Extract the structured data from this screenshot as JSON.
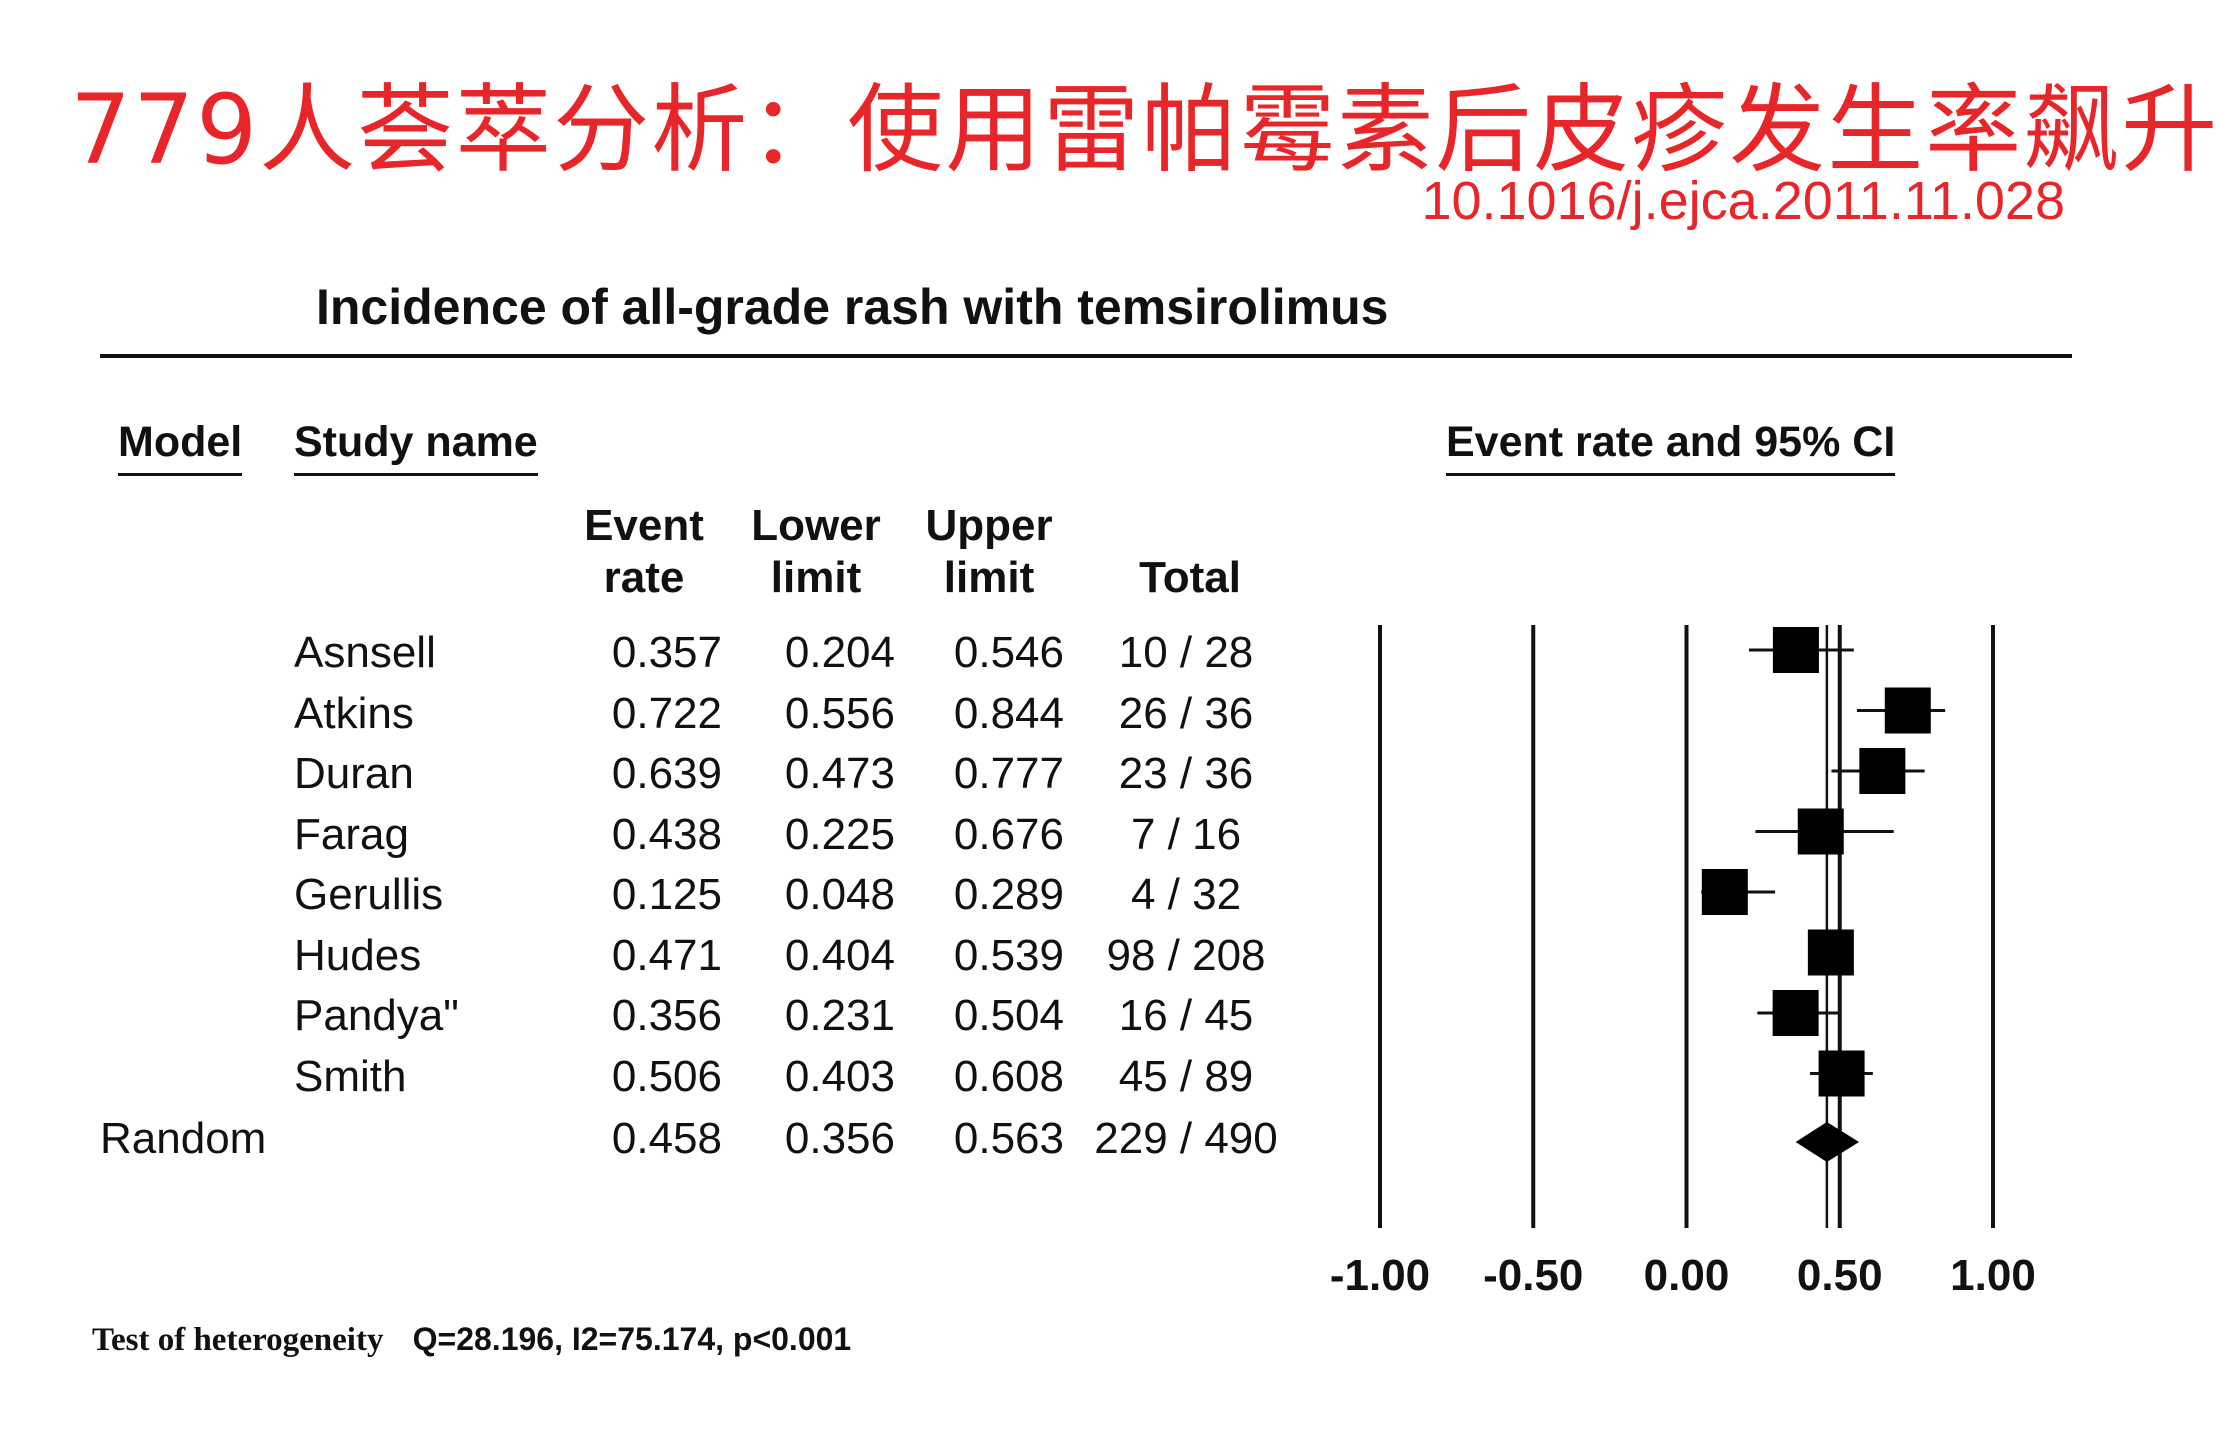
{
  "headline": "779人荟萃分析：使用雷帕霉素后皮疹发生率飙升",
  "doi": "10.1016/j.ejca.2011.11.028",
  "chart_data": {
    "type": "forest",
    "title": "Incidence of all-grade rash with temsirolimus",
    "columns": {
      "model": "Model",
      "study": "Study name",
      "event_rate_ci": "Event rate and 95% CI",
      "event_rate": [
        "Event",
        "rate"
      ],
      "lower": [
        "Lower",
        "limit"
      ],
      "upper": [
        "Upper",
        "limit"
      ],
      "total": "Total"
    },
    "studies": [
      {
        "name": "Asnsell",
        "event_rate": "0.357",
        "lower": "0.204",
        "upper": "0.546",
        "total": "10 / 28"
      },
      {
        "name": "Atkins",
        "event_rate": "0.722",
        "lower": "0.556",
        "upper": "0.844",
        "total": "26 / 36"
      },
      {
        "name": "Duran",
        "event_rate": "0.639",
        "lower": "0.473",
        "upper": "0.777",
        "total": "23 / 36"
      },
      {
        "name": "Farag",
        "event_rate": "0.438",
        "lower": "0.225",
        "upper": "0.676",
        "total": "7 / 16"
      },
      {
        "name": "Gerullis",
        "event_rate": "0.125",
        "lower": "0.048",
        "upper": "0.289",
        "total": "4 / 32"
      },
      {
        "name": "Hudes",
        "event_rate": "0.471",
        "lower": "0.404",
        "upper": "0.539",
        "total": "98 / 208"
      },
      {
        "name": "Pandya\"",
        "event_rate": "0.356",
        "lower": "0.231",
        "upper": "0.504",
        "total": "16 / 45"
      },
      {
        "name": "Smith",
        "event_rate": "0.506",
        "lower": "0.403",
        "upper": "0.608",
        "total": "45 / 89"
      }
    ],
    "summary": {
      "model": "Random",
      "event_rate": "0.458",
      "lower": "0.356",
      "upper": "0.563",
      "total": "229 / 490"
    },
    "x_ticks": [
      "-1.00",
      "-0.50",
      "0.00",
      "0.50",
      "1.00"
    ],
    "xlim": [
      -1,
      1
    ],
    "reference_line": 0.458,
    "heterogeneity_label": "Test of heterogeneity",
    "heterogeneity_stats": "Q=28.196, I2=75.174, p<0.001"
  }
}
